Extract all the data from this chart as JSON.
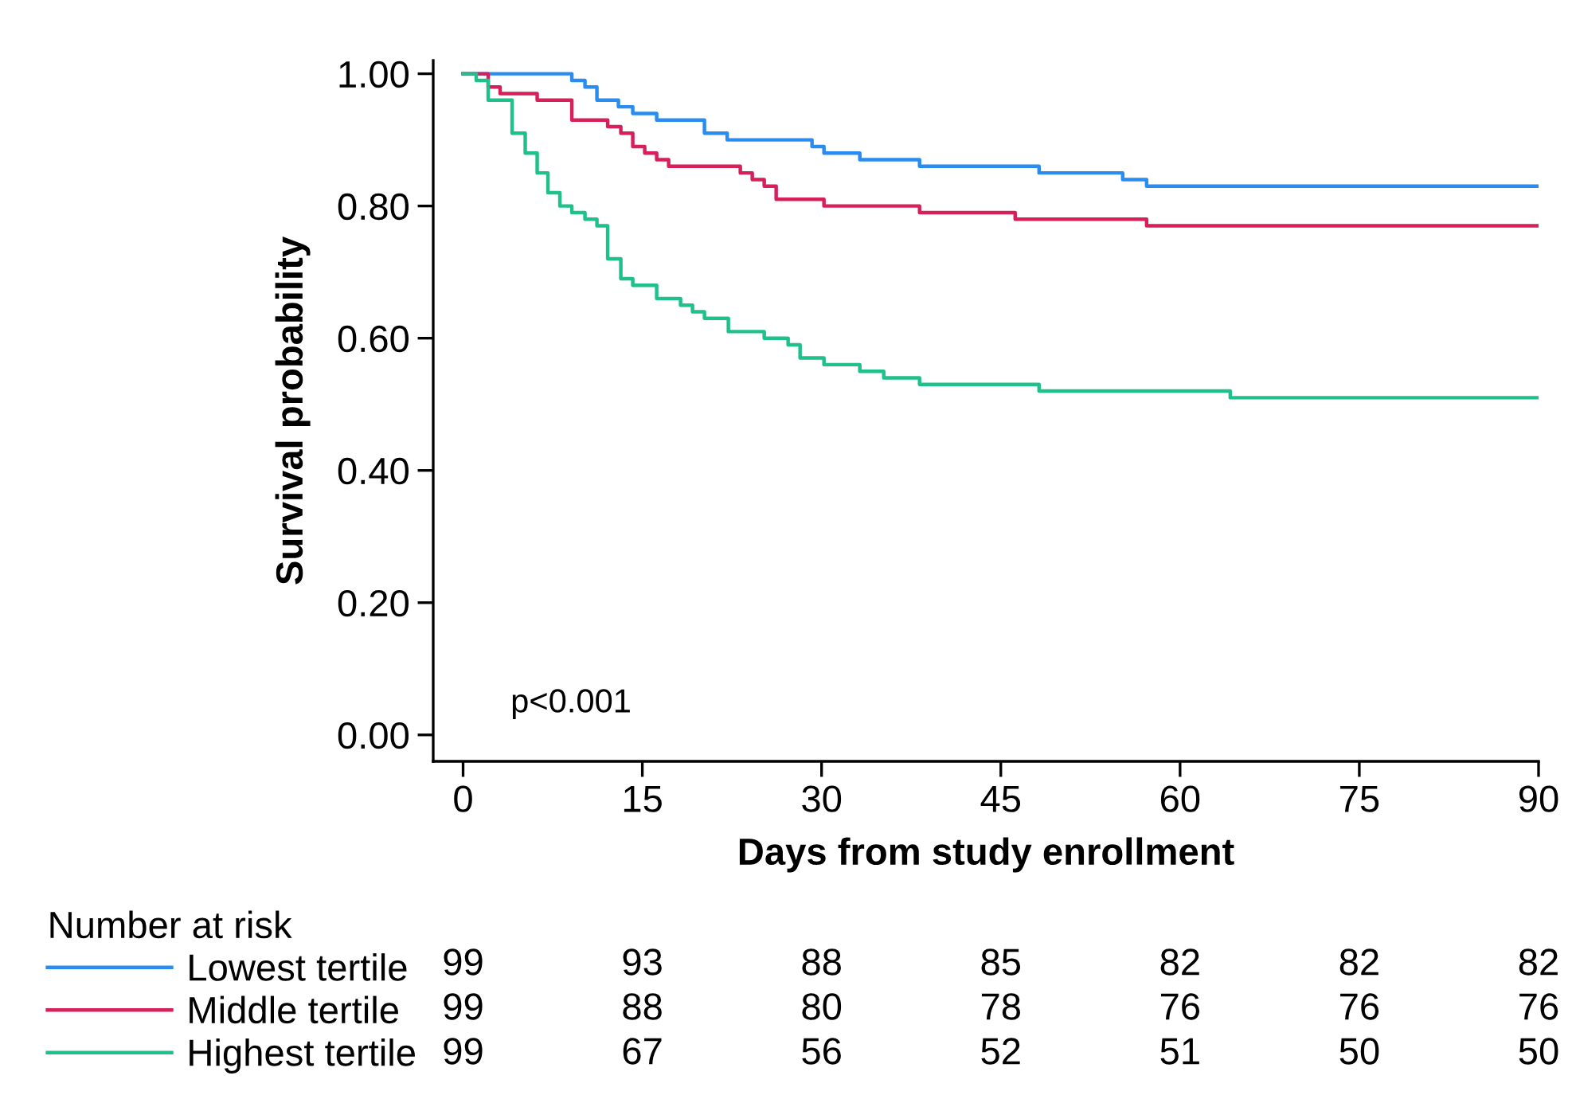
{
  "chart_data": [
    {
      "type": "step",
      "xlabel": "Days from study enrollment",
      "ylabel": "Survival probability",
      "xlim": [
        -2.5,
        90
      ],
      "ylim": [
        -0.04,
        1.02
      ],
      "xticks": [
        0,
        15,
        30,
        45,
        60,
        75,
        90
      ],
      "yticks": [
        {
          "value": 0,
          "label": "0.00"
        },
        {
          "value": 0.2,
          "label": "0.20"
        },
        {
          "value": 0.4,
          "label": "0.40"
        },
        {
          "value": 0.6,
          "label": "0.60"
        },
        {
          "value": 0.8,
          "label": "0.80"
        },
        {
          "value": 1,
          "label": "1.00"
        }
      ],
      "grid": false,
      "legend": "bottom left",
      "legend_title": "Number at risk",
      "marker": "none",
      "line_style": "solid",
      "annotations": [
        "p<0.001"
      ],
      "series": [
        {
          "name": "Lowest tertile",
          "color": "#2b8cf0",
          "x": [
            0,
            9.1,
            10.2,
            11.2,
            13.0,
            14.2,
            16.2,
            20.2,
            22.1,
            29.2,
            30.2,
            33.2,
            38.2,
            48.2,
            55.2,
            57.2,
            90
          ],
          "values": [
            1.0,
            0.99,
            0.98,
            0.96,
            0.95,
            0.94,
            0.93,
            0.91,
            0.9,
            0.89,
            0.88,
            0.87,
            0.86,
            0.85,
            0.84,
            0.83,
            0.83
          ]
        },
        {
          "name": "Middle tertile",
          "color": "#d6205a",
          "x": [
            0,
            2.1,
            3.1,
            6.2,
            9.1,
            12.1,
            13.2,
            14.2,
            15.2,
            16.2,
            17.2,
            23.2,
            24.2,
            25.2,
            26.2,
            30.2,
            38.2,
            46.2,
            57.2,
            90
          ],
          "values": [
            1.0,
            0.98,
            0.97,
            0.96,
            0.93,
            0.92,
            0.91,
            0.89,
            0.88,
            0.87,
            0.86,
            0.85,
            0.84,
            0.83,
            0.81,
            0.8,
            0.79,
            0.78,
            0.77,
            0.77
          ]
        },
        {
          "name": "Highest tertile",
          "color": "#1fc08a",
          "x": [
            0,
            1.1,
            2.1,
            4.1,
            5.2,
            6.2,
            7.1,
            8.1,
            9.1,
            10.2,
            11.2,
            12.1,
            13.2,
            14.2,
            16.2,
            18.2,
            19.2,
            20.2,
            22.2,
            25.2,
            27.2,
            28.2,
            30.2,
            33.2,
            35.2,
            38.2,
            48.2,
            64.2,
            90
          ],
          "values": [
            1.0,
            0.99,
            0.96,
            0.91,
            0.88,
            0.85,
            0.82,
            0.8,
            0.79,
            0.78,
            0.77,
            0.72,
            0.69,
            0.68,
            0.66,
            0.65,
            0.64,
            0.63,
            0.61,
            0.6,
            0.59,
            0.57,
            0.56,
            0.55,
            0.54,
            0.53,
            0.52,
            0.51,
            0.51
          ]
        }
      ]
    },
    {
      "type": "other",
      "annotations": [
        "99",
        "93",
        "88",
        "85",
        "82",
        "82",
        "82",
        "99",
        "88",
        "80",
        "78",
        "76",
        "76",
        "76",
        "99",
        "67",
        "56",
        "52",
        "51",
        "50",
        "50"
      ]
    }
  ]
}
